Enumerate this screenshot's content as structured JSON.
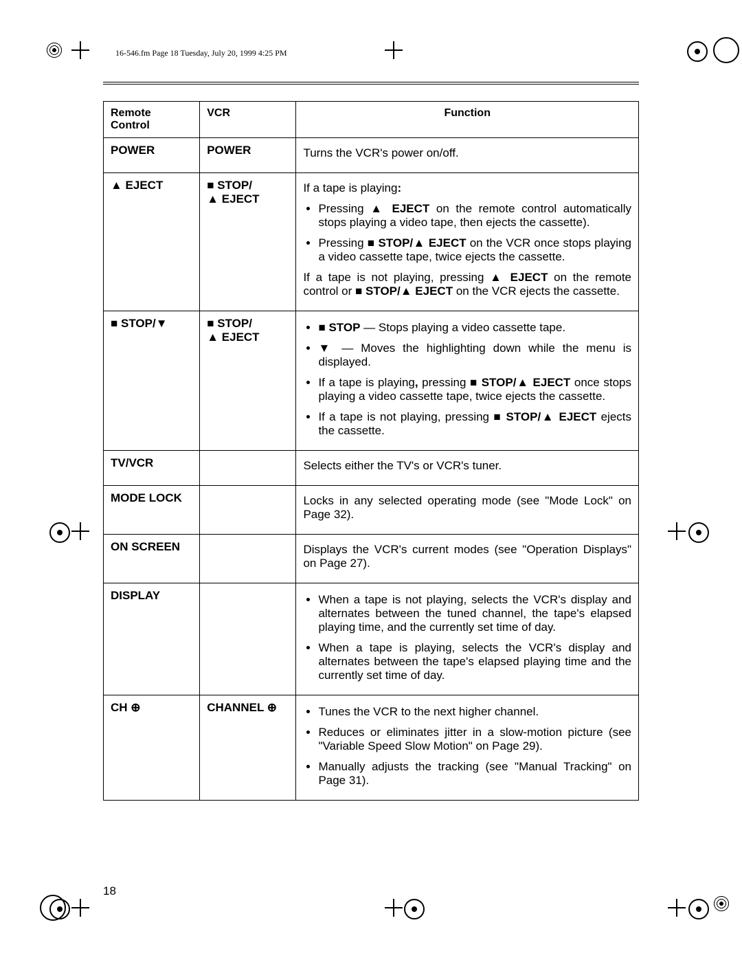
{
  "meta": {
    "header_line": "16-546.fm  Page 18  Tuesday, July 20, 1999  4:25 PM",
    "page_number": "18"
  },
  "symbols": {
    "eject": "▲",
    "stop": "■",
    "down": "▼",
    "plus": "⊕"
  },
  "table": {
    "headers": {
      "c1": "Remote Control",
      "c2": "VCR",
      "c3": "Function"
    },
    "rows": [
      {
        "remote": "POWER",
        "vcr": "POWER",
        "func_html": "<p class='j'>Turns the VCR's power on/off.</p>"
      },
      {
        "remote": "<span class='sym'>▲</span> EJECT",
        "vcr": "<span class='sym'>■</span> STOP/<br><span class='sym'>▲</span> EJECT",
        "func_html": "<p class='j'>If a tape is playing<b>:</b></p><ul class='bul'><li>Pressing <span class='sym'>▲</span> <b>EJECT</b> on the remote control automatically stops playing a video tape, then ejects the cassette).</li><li>Pressing <span class='sym'>■</span> <b>STOP/<span class='sym'>▲</span> EJECT</b> on the VCR once stops playing a video cassette tape, twice ejects the cassette.</li></ul><p class='j'>If a tape is not playing, pressing <span class='sym'>▲</span> <b>EJECT</b> on the remote control or <span class='sym'>■</span> <b>STOP/<span class='sym'>▲</span> EJECT</b> on the VCR ejects the cassette.</p>"
      },
      {
        "remote": "<span class='sym'>■</span> STOP/<span class='sym'>▼</span>",
        "vcr": "<span class='sym'>■</span> STOP/<br><span class='sym'>▲</span> EJECT",
        "func_html": "<ul class='bul'><li><span class='sym'>■</span> <b>STOP</b> — Stops playing a video cassette tape.</li><li><span class='sym'>▼</span> — Moves the highlighting down while the menu is displayed.</li><li>If a tape is playing<b>,</b> pressing <span class='sym'>■</span> <b>STOP/<span class='sym'>▲</span> EJECT</b> once stops playing a video cassette tape, twice ejects the cassette.</li><li>If a tape is not playing, pressing <span class='sym'>■</span> <b>STOP/<span class='sym'>▲</span> EJECT</b> ejects the cassette.</li></ul>"
      },
      {
        "remote": "TV/VCR",
        "vcr": "",
        "func_html": "<p class='j'>Selects either the TV's or VCR's tuner.</p>"
      },
      {
        "remote": "MODE LOCK",
        "vcr": "",
        "func_html": "<p class='j'>Locks in any selected operating mode (see \"Mode Lock\" on Page 32).</p>"
      },
      {
        "remote": "ON SCREEN",
        "vcr": "",
        "func_html": "<p class='j'>Displays the VCR's current modes (see \"Operation Displays\" on Page 27).</p>"
      },
      {
        "remote": "DISPLAY",
        "vcr": "",
        "func_html": "<ul class='bul'><li>When a tape is not playing, selects the VCR's display and alternates between the tuned channel, the tape's elapsed playing time, and the currently set time of day.</li><li>When a tape is playing, selects the VCR's display and alternates between the tape's elapsed playing time and the currently set time of day.</li></ul>"
      },
      {
        "remote": "CH <span class='sym'>⊕</span>",
        "vcr": "CHANNEL <span class='sym'>⊕</span>",
        "func_html": "<ul class='bul'><li>Tunes the VCR to the next higher channel.</li><li>Reduces or eliminates jitter in a slow-motion picture (see \"Variable Speed Slow Motion\" on Page 29).</li><li>Manually adjusts the tracking (see \"Manual Tracking\" on Page 31).</li></ul>"
      }
    ]
  },
  "reg_marks": [
    {
      "class": "concentric",
      "style": "left:64px; top:58px;"
    },
    {
      "class": "cross",
      "style": "left:104px; top:60px;"
    },
    {
      "class": "cross",
      "style": "left:560px; top:60px;"
    },
    {
      "class": "circle dot",
      "style": "left:1000px; top:60px;"
    },
    {
      "class": "circle big",
      "style": "left:1038px; top:54px; border-width:2px;"
    },
    {
      "class": "circle dot",
      "style": "left:72px; top:760px;"
    },
    {
      "class": "cross",
      "style": "left:104px; top:760px;"
    },
    {
      "class": "cross",
      "style": "left:972px; top:760px;"
    },
    {
      "class": "circle dot",
      "style": "left:1002px; top:760px;"
    },
    {
      "class": "circle big",
      "style": "left:58px; top:1302px;"
    },
    {
      "class": "circle dot",
      "style": "left:72px; top:1308px;"
    },
    {
      "class": "cross",
      "style": "left:104px; top:1308px;"
    },
    {
      "class": "cross",
      "style": "left:560px; top:1308px;"
    },
    {
      "class": "circle dot",
      "style": "left:588px; top:1308px;"
    },
    {
      "class": "cross",
      "style": "left:972px; top:1308px;"
    },
    {
      "class": "circle dot",
      "style": "left:1002px; top:1308px;"
    },
    {
      "class": "concentric",
      "style": "left:1035px; top:1300px;"
    }
  ]
}
